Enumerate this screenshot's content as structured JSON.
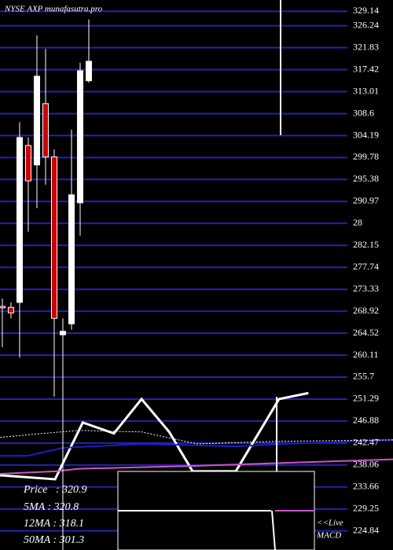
{
  "chart_data": {
    "type": "candlestick",
    "title": "NYSE AXP munafasutra.pro",
    "x": [
      0,
      1,
      2,
      3,
      4,
      5,
      6,
      7,
      8,
      9,
      10
    ],
    "open": [
      269.9,
      269.7,
      270.7,
      302.2,
      298.3,
      310.6,
      299.9,
      264.2,
      266.4,
      290.7,
      315.2
    ],
    "high": [
      271.5,
      270.7,
      306.9,
      303.8,
      324.3,
      321.6,
      301.4,
      267.5,
      305.4,
      318.8,
      327.5
    ],
    "low": [
      261.7,
      267.5,
      259.6,
      284.9,
      289.6,
      294.3,
      251.8,
      221.0,
      265.2,
      284.1,
      314.8
    ],
    "close": [
      269.6,
      268.6,
      303.8,
      295.1,
      316.1,
      299.9,
      267.5,
      264.9,
      292.3,
      317.2,
      319.1
    ],
    "up_color": "#ffffff",
    "down_color": "#cc0000",
    "xlim": [
      -0.27,
      45.18
    ],
    "ylim": [
      221.0,
      331.4
    ],
    "yticks": [
      329.14,
      326.24,
      321.83,
      317.42,
      313.01,
      308.6,
      304.19,
      299.78,
      295.38,
      290.97,
      {
        "value": 286.56,
        "label": "28"
      },
      282.15,
      277.74,
      273.33,
      268.92,
      264.52,
      260.11,
      255.7,
      251.29,
      246.88,
      242.47,
      238.06,
      233.66,
      229.25,
      224.84
    ],
    "grid": true,
    "grid_color": "#2323b0",
    "lines": [
      {
        "color": "#ffffff",
        "width": 3,
        "dash": false,
        "x": [
          -0.27,
          6.1,
          9.3,
          12.9,
          16.1,
          19.3,
          22,
          27,
          32,
          35.4
        ],
        "values": [
          236.0,
          235.2,
          246.6,
          244.4,
          251.3,
          244.7,
          236.8,
          236.8,
          251.3,
          252.5
        ]
      },
      {
        "color": "#1c1ccc",
        "width": 2,
        "dash": false,
        "x": [
          -0.27,
          2.9,
          7,
          16.1,
          27,
          32.5,
          45.18
        ],
        "values": [
          239.9,
          239.9,
          241.5,
          242.3,
          241.8,
          242.3,
          243.1
        ]
      },
      {
        "color": "#cc55cc",
        "width": 2,
        "dash": false,
        "x": [
          -0.27,
          6.1,
          8.8,
          22.5,
          45.18
        ],
        "values": [
          236.3,
          236.8,
          237.3,
          237.9,
          239.2
        ]
      },
      {
        "color": "#ffffff",
        "width": 1,
        "dash": true,
        "x": [
          -0.27,
          3.4,
          8.8,
          16.1,
          22.5,
          31.5,
          45.18
        ],
        "values": [
          243.6,
          244.2,
          245.0,
          244.7,
          242.3,
          242.8,
          243.1
        ]
      }
    ],
    "annotations": [
      "Price   : 320.9",
      "5MA : 320.8",
      "12MA : 318.1",
      "50MA : 301.3",
      "<<Live",
      "MACD"
    ]
  }
}
